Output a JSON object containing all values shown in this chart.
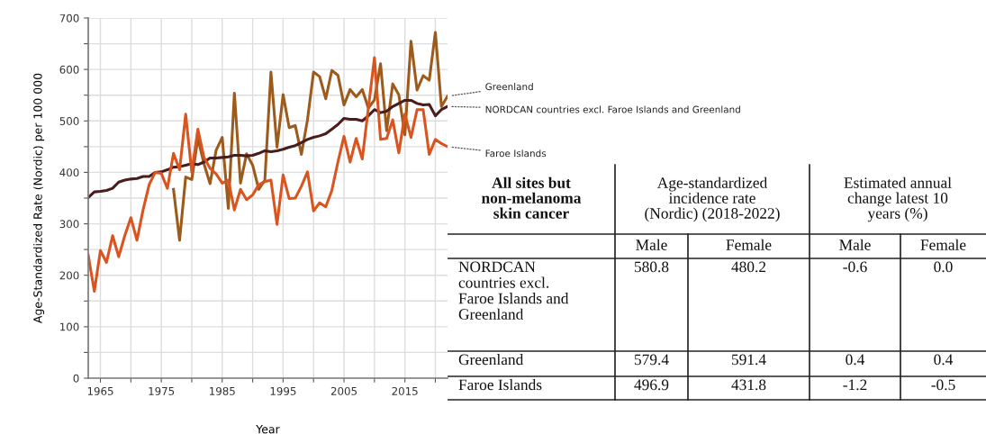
{
  "chart_data": [
    {
      "type": "line",
      "xlabel": "Year",
      "ylabel": "Age-Standardized Rate (Nordic) per 100 000",
      "x": [
        1963,
        1964,
        1965,
        1966,
        1967,
        1968,
        1969,
        1970,
        1971,
        1972,
        1973,
        1974,
        1975,
        1976,
        1977,
        1978,
        1979,
        1980,
        1981,
        1982,
        1983,
        1984,
        1985,
        1986,
        1987,
        1988,
        1989,
        1990,
        1991,
        1992,
        1993,
        1994,
        1995,
        1996,
        1997,
        1998,
        1999,
        2000,
        2001,
        2002,
        2003,
        2004,
        2005,
        2006,
        2007,
        2008,
        2009,
        2010,
        2011,
        2012,
        2013,
        2014,
        2015,
        2016,
        2017,
        2018,
        2019,
        2020,
        2021,
        2022
      ],
      "series": [
        {
          "name": "Greenland",
          "color": "#9c5a1c",
          "x": [
            1977,
            1978,
            1979,
            1980,
            1981,
            1982,
            1983,
            1984,
            1985,
            1986,
            1987,
            1988,
            1989,
            1990,
            1991,
            1992,
            1993,
            1994,
            1995,
            1996,
            1997,
            1998,
            1999,
            2000,
            2001,
            2002,
            2003,
            2004,
            2005,
            2006,
            2007,
            2008,
            2009,
            2010,
            2011,
            2012,
            2013,
            2014,
            2015,
            2016,
            2017,
            2018,
            2019,
            2020,
            2021,
            2022
          ],
          "values": [
            367,
            268,
            391,
            386,
            466,
            417,
            378,
            443,
            468,
            330,
            554,
            379,
            436,
            414,
            367,
            385,
            595,
            449,
            551,
            487,
            491,
            435,
            502,
            595,
            586,
            543,
            598,
            589,
            531,
            561,
            547,
            561,
            525,
            541,
            611,
            481,
            572,
            551,
            473,
            655,
            560,
            588,
            579,
            672,
            528,
            548
          ]
        },
        {
          "name": "NORDCAN countries excl. Faroe Islands and Greenland",
          "color": "#4a1c1c",
          "values": [
            351,
            362,
            363,
            365,
            369,
            381,
            385,
            387,
            388,
            392,
            392,
            400,
            401,
            405,
            410,
            411,
            414,
            417,
            415,
            420,
            428,
            428,
            429,
            430,
            433,
            433,
            432,
            433,
            437,
            442,
            440,
            442,
            445,
            449,
            452,
            458,
            464,
            468,
            471,
            475,
            484,
            493,
            505,
            503,
            503,
            500,
            510,
            522,
            516,
            519,
            528,
            534,
            540,
            540,
            534,
            531,
            532,
            510,
            522,
            528
          ]
        },
        {
          "name": "Faroe Islands",
          "color": "#d9541e",
          "values": [
            239,
            169,
            248,
            225,
            277,
            236,
            277,
            312,
            268,
            327,
            376,
            400,
            398,
            369,
            437,
            405,
            513,
            400,
            484,
            429,
            408,
            397,
            379,
            385,
            327,
            367,
            347,
            356,
            376,
            382,
            385,
            299,
            395,
            349,
            350,
            373,
            401,
            325,
            341,
            333,
            365,
            420,
            470,
            420,
            466,
            426,
            525,
            623,
            464,
            466,
            502,
            438,
            513,
            468,
            522,
            522,
            435,
            464,
            456,
            450
          ]
        }
      ],
      "xlim": [
        1963,
        2022
      ],
      "ylim": [
        0,
        700
      ],
      "xticks": [
        1965,
        {
          "value": 1970,
          "label": null
        },
        1975,
        {
          "value": 1980,
          "label": null
        },
        1985,
        {
          "value": 1990,
          "label": null
        },
        1995,
        {
          "value": 2000,
          "label": null
        },
        2005,
        {
          "value": 2010,
          "label": null
        },
        2015,
        {
          "value": 2020,
          "label": null
        }
      ],
      "yticks": [
        0,
        {
          "value": 50,
          "label": null
        },
        100,
        {
          "value": 150,
          "label": null
        },
        200,
        {
          "value": 250,
          "label": null
        },
        300,
        {
          "value": 350,
          "label": null
        },
        400,
        {
          "value": 450,
          "label": null
        },
        500,
        {
          "value": 550,
          "label": null
        },
        600,
        {
          "value": 650,
          "label": null
        },
        700
      ],
      "grid": true,
      "legend": false,
      "line_style": "solid",
      "marker": "none"
    },
    {
      "type": "other",
      "annotations": [
        "All sites but\nnon-melanoma\nskin cancer",
        "Age-standardized\nincidence rate\n(Nordic) (2018-2022)",
        "Estimated annual\nchange latest 10\nyears (%)",
        "Male",
        "Female",
        "Male",
        "Female",
        "NORDCAN\ncountries excl.\nFaroe Islands and\nGreenland",
        "580.8",
        "480.2",
        "-0.6",
        "0.0",
        "Greenland",
        "579.4",
        "591.4",
        "0.4",
        "0.4",
        "Faroe Islands",
        "496.9",
        "431.8",
        "-1.2",
        "-0.5"
      ]
    }
  ]
}
